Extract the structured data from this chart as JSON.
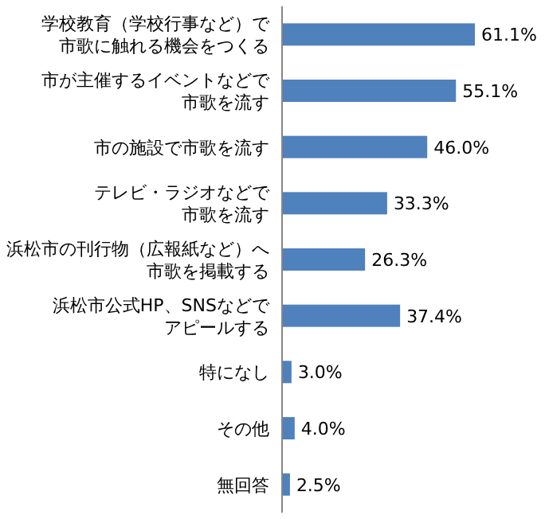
{
  "chart_data": {
    "type": "bar",
    "orientation": "horizontal",
    "categories": [
      "学校教育（学校行事など）で市歌に触れる機会をつくる",
      "市が主催するイベントなどで市歌を流す",
      "市の施設で市歌を流す",
      "テレビ・ラジオなどで市歌を流す",
      "浜松市の刊行物（広報紙など）へ市歌を掲載する",
      "浜松市公式HP、SNSなどでアピールする",
      "特になし",
      "その他",
      "無回答"
    ],
    "values": [
      61.1,
      55.1,
      46.0,
      33.3,
      26.3,
      37.4,
      3.0,
      4.0,
      2.5
    ],
    "value_labels": [
      "61.1%",
      "55.1%",
      "46.0%",
      "33.3%",
      "26.3%",
      "37.4%",
      "3.0%",
      "4.0%",
      "2.5%"
    ],
    "color": "#4f81bd"
  }
}
